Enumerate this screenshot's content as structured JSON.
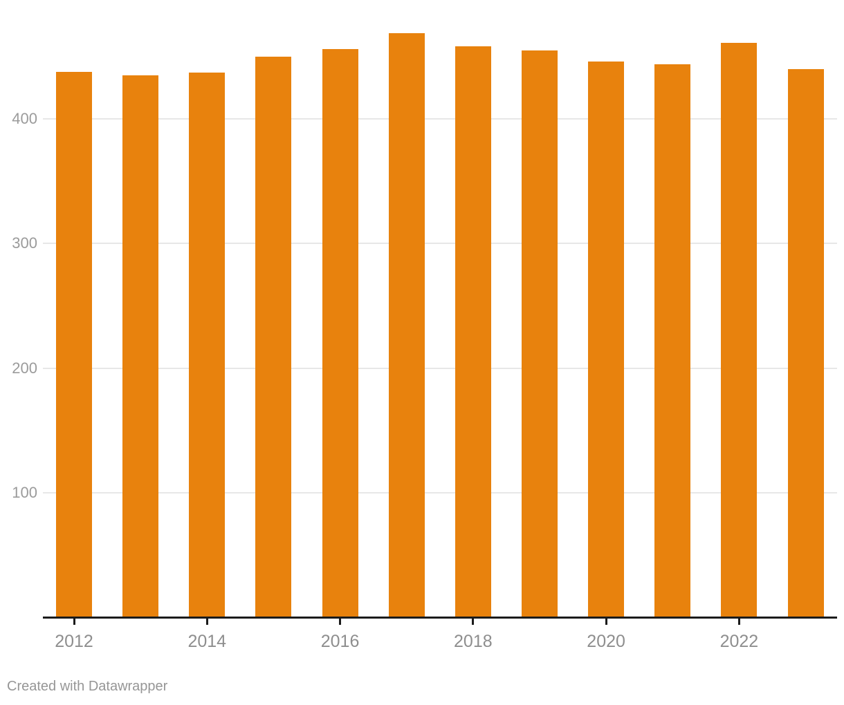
{
  "chart_data": {
    "type": "bar",
    "categories": [
      "2012",
      "2013",
      "2014",
      "2015",
      "2016",
      "2017",
      "2018",
      "2019",
      "2020",
      "2021",
      "2022",
      "2023"
    ],
    "values": [
      438,
      435,
      437,
      450,
      456,
      469,
      458,
      455,
      446,
      444,
      461,
      440
    ],
    "title": "",
    "xlabel": "",
    "ylabel": "",
    "ylim": [
      0,
      500
    ],
    "y_ticks": [
      100,
      200,
      300,
      400
    ],
    "x_tick_labels": [
      "2012",
      "2014",
      "2016",
      "2018",
      "2020",
      "2022"
    ],
    "grid": "horizontal-only",
    "legend": "none",
    "bar_color": "#E8820D"
  },
  "colors": {
    "background": "#ffffff",
    "bar": "#E8820D",
    "gridline": "#e7e7e7",
    "axis_line": "#1b1b1b",
    "y_label": "#9b9b9b",
    "x_label": "#8e8e8e",
    "attribution": "#969696"
  },
  "footer": {
    "attribution": "Created with Datawrapper"
  }
}
